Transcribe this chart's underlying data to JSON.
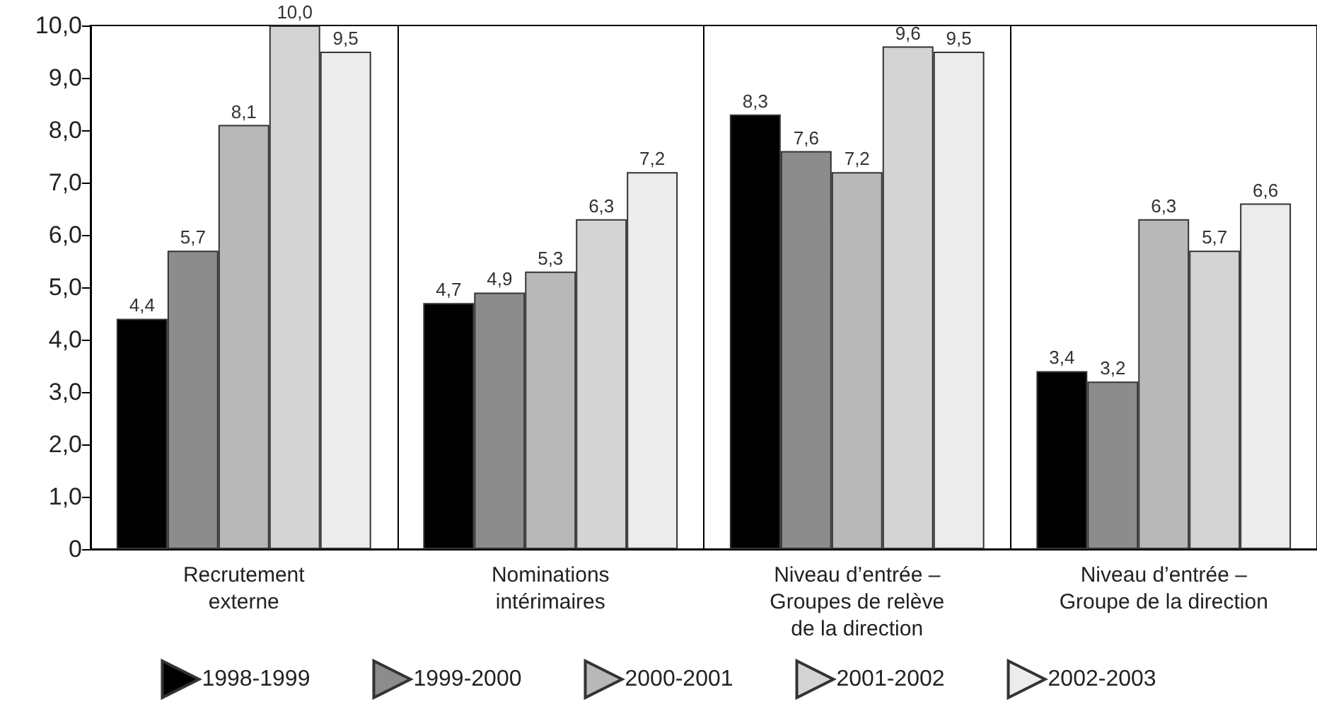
{
  "chart_data": {
    "type": "bar",
    "categories": [
      "Recrutement\nexterne",
      "Nominations\nintérimaires",
      "Niveau d’entrée –\nGroupes de relève\nde la direction",
      "Niveau d’entrée –\nGroupe de la direction"
    ],
    "series": [
      {
        "name": "1998-1999",
        "color": "#000000",
        "values": [
          4.4,
          4.7,
          8.3,
          3.4
        ],
        "value_labels": [
          "4,4",
          "4,7",
          "8,3",
          "3,4"
        ]
      },
      {
        "name": "1999-2000",
        "color": "#8c8c8c",
        "values": [
          5.7,
          4.9,
          7.6,
          3.2
        ],
        "value_labels": [
          "5,7",
          "4,9",
          "7,6",
          "3,2"
        ]
      },
      {
        "name": "2000-2001",
        "color": "#b8b8b8",
        "values": [
          8.1,
          5.3,
          7.2,
          6.3
        ],
        "value_labels": [
          "8,1",
          "5,3",
          "7,2",
          "6,3"
        ]
      },
      {
        "name": "2001-2002",
        "color": "#d4d4d4",
        "values": [
          10.0,
          6.3,
          9.6,
          5.7
        ],
        "value_labels": [
          "10,0",
          "6,3",
          "9,6",
          "5,7"
        ]
      },
      {
        "name": "2002-2003",
        "color": "#ececec",
        "values": [
          9.5,
          7.2,
          9.5,
          6.6
        ],
        "value_labels": [
          "9,5",
          "7,2",
          "9,5",
          "6,6"
        ]
      }
    ],
    "ylim": [
      0,
      10
    ],
    "yticks": [
      0,
      {
        "value": 1,
        "label": "1,0"
      },
      {
        "value": 2,
        "label": "2,0"
      },
      {
        "value": 3,
        "label": "3,0"
      },
      {
        "value": 4,
        "label": "4,0"
      },
      {
        "value": 5,
        "label": "5,0"
      },
      {
        "value": 6,
        "label": "6,0"
      },
      {
        "value": 7,
        "label": "7,0"
      },
      {
        "value": 8,
        "label": "8,0"
      },
      {
        "value": 9,
        "label": "9,0"
      },
      {
        "value": 10,
        "label": "10,0"
      }
    ],
    "grid": "x",
    "legend": "bottom"
  }
}
